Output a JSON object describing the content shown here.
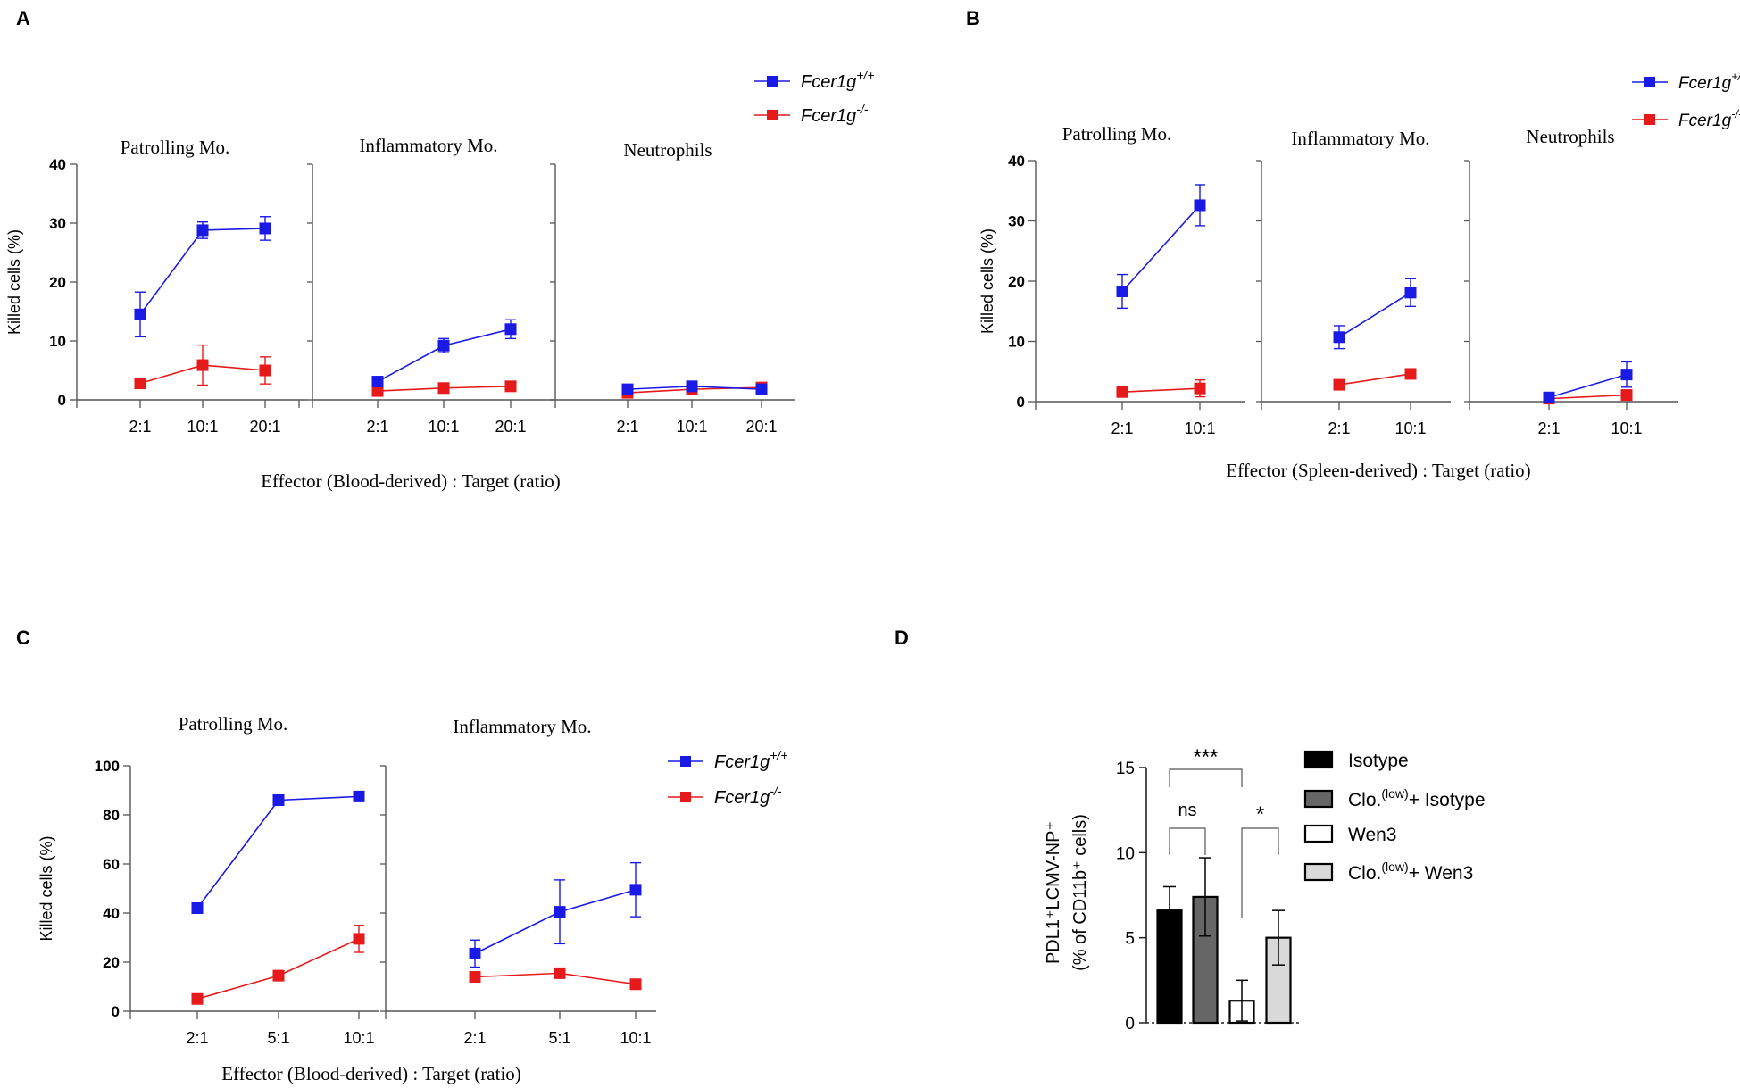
{
  "figure": {
    "panel_labels": [
      "A",
      "B",
      "C",
      "D"
    ],
    "colors": {
      "wt": "#1a1ae6",
      "ko": "#e61a1a",
      "axis": "#555555"
    }
  },
  "chart_data": [
    {
      "id": "A",
      "type": "line",
      "ylabel": "Killed cells (%)",
      "xlabel": "Effector (Blood-derived) : Target (ratio)",
      "ylim": [
        0,
        40
      ],
      "yticks": [
        0,
        10,
        20,
        30,
        40
      ],
      "categories": [
        "2:1",
        "10:1",
        "20:1"
      ],
      "legend": [
        {
          "main": "Fcer1g",
          "sup": "+/+"
        },
        {
          "main": "Fcer1g",
          "sup": "-/-"
        }
      ],
      "subplots": [
        {
          "title": "Patrolling Mo.",
          "series": [
            {
              "name": "Fcer1g+/+",
              "values": [
                14.5,
                28.8,
                29.1
              ],
              "err": [
                3.8,
                1.4,
                2.0
              ]
            },
            {
              "name": "Fcer1g-/-",
              "values": [
                2.8,
                5.9,
                5.0
              ],
              "err": [
                0,
                3.4,
                2.3
              ]
            }
          ]
        },
        {
          "title": "Inflammatory Mo.",
          "series": [
            {
              "name": "Fcer1g+/+",
              "values": [
                3.1,
                9.2,
                12.0
              ],
              "err": [
                0,
                1.2,
                1.6
              ]
            },
            {
              "name": "Fcer1g-/-",
              "values": [
                1.5,
                2.0,
                2.3
              ],
              "err": [
                0,
                0,
                0
              ]
            }
          ]
        },
        {
          "title": "Neutrophils",
          "series": [
            {
              "name": "Fcer1g+/+",
              "values": [
                1.8,
                2.3,
                1.8
              ],
              "err": [
                0,
                0,
                0
              ]
            },
            {
              "name": "Fcer1g-/-",
              "values": [
                1.2,
                1.8,
                2.1
              ],
              "err": [
                0,
                0,
                0
              ]
            }
          ]
        }
      ]
    },
    {
      "id": "B",
      "type": "line",
      "ylabel": "Killed cells (%)",
      "xlabel": "Effector (Spleen-derived) : Target (ratio)",
      "ylim": [
        0,
        40
      ],
      "yticks": [
        0,
        10,
        20,
        30,
        40
      ],
      "categories": [
        "2:1",
        "10:1"
      ],
      "legend": [
        {
          "main": "Fcer1g",
          "sup": "+/+"
        },
        {
          "main": "Fcer1g",
          "sup": "-/-"
        }
      ],
      "subplots": [
        {
          "title": "Patrolling Mo.",
          "series": [
            {
              "name": "Fcer1g+/+",
              "values": [
                18.3,
                32.6
              ],
              "err": [
                2.8,
                3.4
              ]
            },
            {
              "name": "Fcer1g-/-",
              "values": [
                1.6,
                2.2
              ],
              "err": [
                0,
                1.4
              ]
            }
          ]
        },
        {
          "title": "Inflammatory Mo.",
          "series": [
            {
              "name": "Fcer1g+/+",
              "values": [
                10.7,
                18.1
              ],
              "err": [
                1.9,
                2.3
              ]
            },
            {
              "name": "Fcer1g-/-",
              "values": [
                2.8,
                4.6
              ],
              "err": [
                0,
                0
              ]
            }
          ]
        },
        {
          "title": "Neutrophils",
          "series": [
            {
              "name": "Fcer1g+/+",
              "values": [
                0.7,
                4.5
              ],
              "err": [
                0,
                2.1
              ]
            },
            {
              "name": "Fcer1g-/-",
              "values": [
                0.5,
                1.1
              ],
              "err": [
                0,
                0
              ]
            }
          ]
        }
      ]
    },
    {
      "id": "C",
      "type": "line",
      "ylabel": "Killed cells (%)",
      "xlabel": "Effector (Blood-derived) : Target (ratio)",
      "ylim": [
        0,
        100
      ],
      "yticks": [
        0,
        20,
        40,
        60,
        80,
        100
      ],
      "categories": [
        "2:1",
        "5:1",
        "10:1"
      ],
      "legend": [
        {
          "main": "Fcer1g",
          "sup": "+/+"
        },
        {
          "main": "Fcer1g",
          "sup": "-/-"
        }
      ],
      "subplots": [
        {
          "title": "Patrolling Mo.",
          "series": [
            {
              "name": "Fcer1g+/+",
              "values": [
                42,
                86,
                87.5
              ],
              "err": [
                0,
                0,
                0
              ]
            },
            {
              "name": "Fcer1g-/-",
              "values": [
                5,
                14.5,
                29.5
              ],
              "err": [
                0,
                0,
                5.5
              ]
            }
          ]
        },
        {
          "title": "Inflammatory Mo.",
          "series": [
            {
              "name": "Fcer1g+/+",
              "values": [
                23.5,
                40.5,
                49.5
              ],
              "err": [
                5.5,
                13,
                11
              ]
            },
            {
              "name": "Fcer1g-/-",
              "values": [
                14,
                15.5,
                11
              ],
              "err": [
                0,
                0,
                0
              ]
            }
          ]
        }
      ]
    },
    {
      "id": "D",
      "type": "bar",
      "ylabel_line1": "PDL1⁺LCMV-NP⁺",
      "ylabel_line2": "(% of CD11b⁺ cells)",
      "ylim": [
        0,
        15
      ],
      "yticks": [
        0,
        5,
        10,
        15
      ],
      "categories": [
        "Isotype",
        "Clo.(low)+ Isotype",
        "Wen3",
        "Clo.(low)+ Wen3"
      ],
      "values": [
        6.6,
        7.4,
        1.3,
        5.0
      ],
      "err": [
        1.4,
        2.3,
        1.2,
        1.6
      ],
      "fills": [
        "#000000",
        "#666666",
        "#ffffff",
        "#d9d9d9"
      ],
      "legend": [
        {
          "main": "Isotype",
          "sup": "",
          "tail": ""
        },
        {
          "main": "Clo.",
          "sup": "(low)",
          "tail": "+ Isotype"
        },
        {
          "main": "Wen3",
          "sup": "",
          "tail": ""
        },
        {
          "main": "Clo.",
          "sup": "(low)",
          "tail": "+ Wen3"
        }
      ],
      "significance": [
        {
          "label": "***",
          "from": 0,
          "to": 2
        },
        {
          "label": "ns",
          "from": 0,
          "to": 1
        },
        {
          "label": "*",
          "from": 2,
          "to": 3
        }
      ]
    }
  ]
}
